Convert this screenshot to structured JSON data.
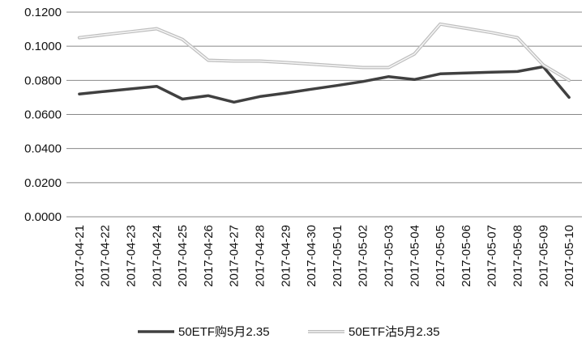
{
  "chart_data": {
    "type": "line",
    "title": "",
    "xlabel": "",
    "ylabel": "",
    "ylim": [
      0,
      0.12
    ],
    "y_ticks": [
      "0.0000",
      "0.0200",
      "0.0400",
      "0.0600",
      "0.0800",
      "0.1000",
      "0.1200"
    ],
    "y_tick_values": [
      0,
      0.02,
      0.04,
      0.06,
      0.08,
      0.1,
      0.12
    ],
    "grid": "horizontal",
    "legend_position": "bottom",
    "x": [
      "2017-04-21",
      "2017-04-22",
      "2017-04-23",
      "2017-04-24",
      "2017-04-25",
      "2017-04-26",
      "2017-04-27",
      "2017-04-28",
      "2017-04-29",
      "2017-04-30",
      "2017-05-01",
      "2017-05-02",
      "2017-05-03",
      "2017-05-04",
      "2017-05-05",
      "2017-05-06",
      "2017-05-07",
      "2017-05-08",
      "2017-05-09",
      "2017-05-10"
    ],
    "series": [
      {
        "name": "50ETF购5月2.35",
        "color": "#404040",
        "style": "solid",
        "values": [
          0.072,
          0.0735,
          0.075,
          0.0765,
          0.069,
          0.071,
          0.0672,
          0.0705,
          0.0725,
          0.0748,
          0.077,
          0.0793,
          0.0822,
          0.0805,
          0.0838,
          0.0843,
          0.0848,
          0.0852,
          0.088,
          0.07
        ]
      },
      {
        "name": "50ETF沽5月2.35",
        "color": "#c8c8c8",
        "style": "double",
        "values": [
          0.105,
          0.1068,
          0.1085,
          0.1103,
          0.104,
          0.0918,
          0.0913,
          0.0913,
          0.0905,
          0.0895,
          0.0885,
          0.0875,
          0.0875,
          0.0955,
          0.113,
          0.1105,
          0.108,
          0.105,
          0.089,
          0.08
        ]
      }
    ]
  }
}
